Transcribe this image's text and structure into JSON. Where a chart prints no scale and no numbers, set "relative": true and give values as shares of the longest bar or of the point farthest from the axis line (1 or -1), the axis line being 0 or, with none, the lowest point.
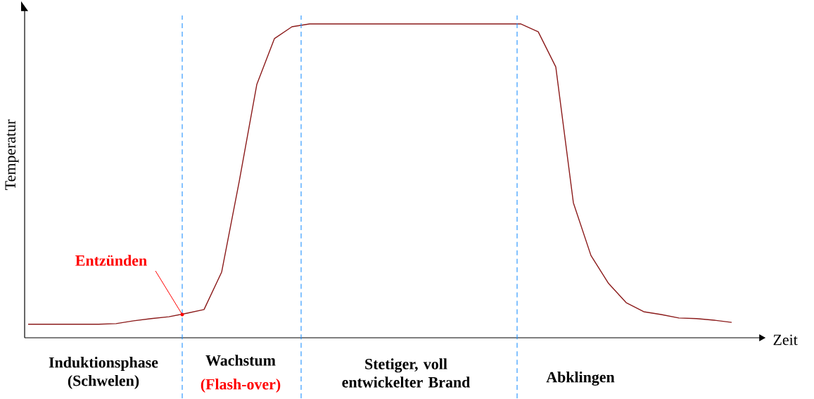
{
  "chart_data": {
    "type": "line",
    "relative": true,
    "xlabel": "Zeit",
    "ylabel": "Temperatur",
    "categories": [
      null,
      null,
      null,
      null,
      null,
      null,
      null,
      null,
      null,
      null,
      null,
      null,
      null,
      null,
      null,
      null,
      null,
      null,
      null,
      null,
      null,
      null,
      null,
      null,
      null,
      null,
      null,
      null,
      null,
      null,
      null,
      null,
      null,
      null,
      null,
      null,
      null,
      null,
      null,
      null,
      null
    ],
    "series": [
      {
        "color": "#8b1a1a",
        "values": [
          0.043,
          0.043,
          0.043,
          0.043,
          0.043,
          0.045,
          0.054,
          0.061,
          0.067,
          0.078,
          0.09,
          0.209,
          0.498,
          0.807,
          0.953,
          0.991,
          1,
          1,
          1,
          1,
          1,
          1,
          1,
          1,
          1,
          1,
          1,
          1,
          1,
          0.975,
          0.863,
          0.43,
          0.262,
          0.173,
          0.112,
          0.083,
          0.074,
          0.063,
          0.061,
          0.056,
          0.049
        ]
      }
    ],
    "annotations": [
      "Entzünden",
      "Induktionsphase (Schwelen)",
      "Wachstum",
      "(Flash-over)",
      "Stetiger, voll entwickelter Brand",
      "Abklingen"
    ]
  }
}
